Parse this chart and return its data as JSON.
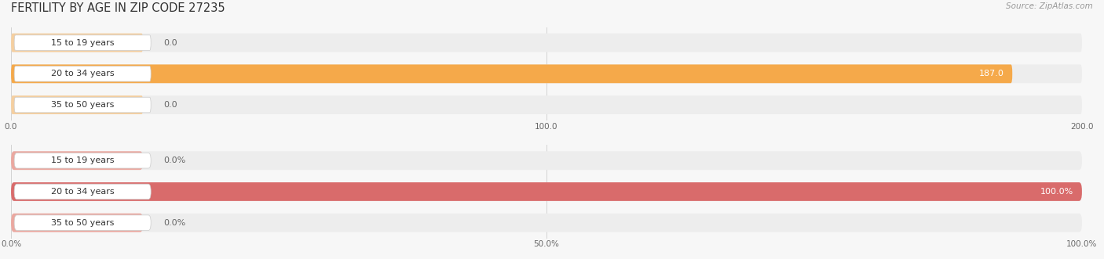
{
  "title": "FERTILITY BY AGE IN ZIP CODE 27235",
  "source": "Source: ZipAtlas.com",
  "top_chart": {
    "categories": [
      "15 to 19 years",
      "20 to 34 years",
      "35 to 50 years"
    ],
    "values": [
      0.0,
      187.0,
      0.0
    ],
    "xlim": [
      0,
      200
    ],
    "xticks": [
      0.0,
      100.0,
      200.0
    ],
    "xtick_labels": [
      "0.0",
      "100.0",
      "200.0"
    ],
    "bar_color_full": "#F5A94A",
    "bar_color_empty": "#F5CFA0",
    "bar_bg_color": "#EDEDED",
    "label_color_inside": "#FFFFFF",
    "label_color_outside": "#666666",
    "label_bg": "#FFFFFF"
  },
  "bottom_chart": {
    "categories": [
      "15 to 19 years",
      "20 to 34 years",
      "35 to 50 years"
    ],
    "values": [
      0.0,
      100.0,
      0.0
    ],
    "xlim": [
      0,
      100
    ],
    "xticks": [
      0.0,
      50.0,
      100.0
    ],
    "xtick_labels": [
      "0.0%",
      "50.0%",
      "100.0%"
    ],
    "bar_color_full": "#D96B6B",
    "bar_color_empty": "#EBA8A0",
    "bar_bg_color": "#EDEDED",
    "label_color_inside": "#FFFFFF",
    "label_color_outside": "#666666",
    "label_bg": "#FFFFFF"
  },
  "bg_color": "#F7F7F7",
  "title_fontsize": 10.5,
  "label_fontsize": 8,
  "category_fontsize": 8,
  "tick_fontsize": 7.5,
  "source_fontsize": 7.5,
  "bar_height": 0.6,
  "bar_spacing": 1.0
}
